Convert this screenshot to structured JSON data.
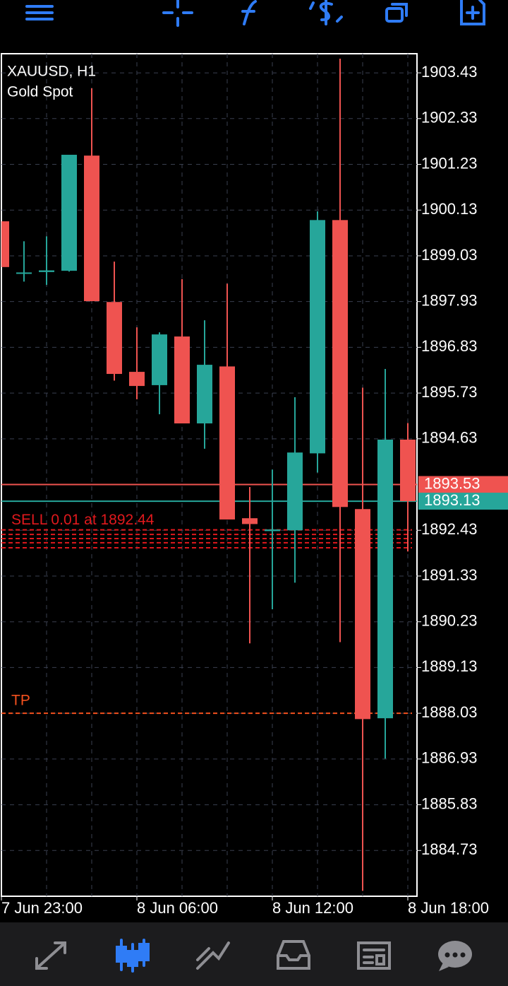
{
  "chart_data": {
    "type": "candlestick",
    "title": "XAUUSD, H1",
    "subtitle": "Gold Spot",
    "categories": [
      "7 Jun 23:00",
      null,
      null,
      null,
      null,
      null,
      "8 Jun 06:00",
      null,
      null,
      null,
      null,
      null,
      "8 Jun 12:00",
      null,
      null,
      null,
      null,
      null,
      "8 Jun 18:00"
    ],
    "open": [
      1899.86,
      1898.6,
      1898.64,
      1898.67,
      1901.44,
      1897.92,
      1896.24,
      1895.92,
      1897.09,
      1895.0,
      1896.37,
      1892.72,
      1892.41,
      1892.43,
      1894.28,
      1899.89,
      1892.94,
      1887.91,
      1894.61
    ],
    "high": [
      1899.86,
      1899.38,
      1899.5,
      1901.46,
      1903.06,
      1898.89,
      1897.31,
      1897.19,
      1898.47,
      1897.48,
      1898.36,
      1893.47,
      1893.89,
      1895.63,
      1900.1,
      1903.77,
      1895.86,
      1896.31,
      1895.01
    ],
    "low": [
      1898.76,
      1898.41,
      1898.33,
      1898.65,
      1897.94,
      1896.03,
      1895.58,
      1895.22,
      1895.0,
      1894.39,
      1892.69,
      1889.71,
      1890.53,
      1891.17,
      1893.82,
      1889.74,
      1883.76,
      1886.94,
      1891.92
    ],
    "close": [
      1898.76,
      1898.63,
      1898.68,
      1901.46,
      1897.94,
      1896.19,
      1895.9,
      1897.14,
      1895.0,
      1896.41,
      1892.69,
      1892.58,
      1892.45,
      1894.3,
      1899.89,
      1892.99,
      1887.89,
      1894.61,
      1893.13
    ],
    "up_color": "#26a69a",
    "down_color": "#ef5350",
    "ylim": [
      1883.63,
      1903.89
    ],
    "yticks": [
      1903.43,
      1902.33,
      1901.23,
      1900.13,
      1899.03,
      1897.93,
      1896.83,
      1895.73,
      1894.63,
      1892.43,
      1891.33,
      1890.23,
      1889.13,
      1888.03,
      1886.93,
      1885.83,
      1884.73
    ],
    "grid": true,
    "ask": {
      "value": 1893.53,
      "color": "#ef5350"
    },
    "bid": {
      "value": 1893.13,
      "color": "#26a69a"
    },
    "orders": [
      {
        "label": "SELL 0.01 at 1892.44",
        "price": 1892.44
      },
      {
        "price": 1892.33
      },
      {
        "price": 1892.23
      },
      {
        "price": 1892.13
      },
      {
        "price": 1892.01
      }
    ],
    "order_color": "#e0191d",
    "take_profit": {
      "label": "TP",
      "price": 1888.03,
      "color": "#f4511e"
    }
  }
}
